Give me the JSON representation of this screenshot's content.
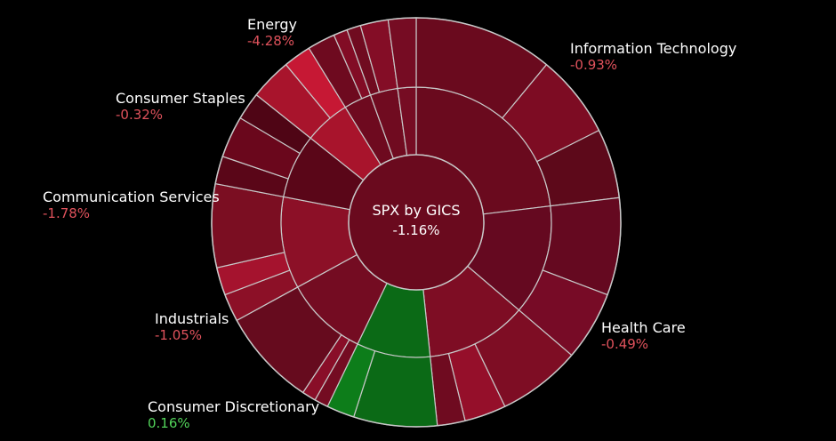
{
  "chart_data": {
    "type": "sunburst",
    "title": "SPX by GICS",
    "total_change": "-1.16%",
    "colors": {
      "strong_negative": "#a8142c",
      "negative": "#8a0f25",
      "mild_negative": "#6e0a1f",
      "flat_negative": "#5c0619",
      "positive": "#0b6a16",
      "label_negative": "#e0525c",
      "label_positive": "#52d35a"
    },
    "sectors": [
      {
        "name": "Information Technology",
        "change_label": "-0.93%",
        "change": -0.93,
        "weight": 21,
        "sub": [
          10,
          6,
          5
        ],
        "color": "#6a0a1e",
        "label_side": "right"
      },
      {
        "name": "Health Care",
        "change_label": "-0.49%",
        "change": -0.49,
        "weight": 12,
        "sub": [
          7,
          5
        ],
        "color": "#650920",
        "label_side": "right"
      },
      {
        "name": "",
        "change_label": "",
        "change": -1.1,
        "weight": 11,
        "sub": [
          6,
          3,
          2
        ],
        "color": "#7e0d24",
        "label_side": "none"
      },
      {
        "name": "Consumer Discretionary",
        "change_label": "0.16%",
        "change": 0.16,
        "weight": 8,
        "sub": [
          6,
          2
        ],
        "color": "#0b6a16",
        "label_side": "left"
      },
      {
        "name": "Industrials",
        "change_label": "-1.05%",
        "change": -1.05,
        "weight": 9,
        "sub": [
          1,
          1,
          7
        ],
        "color": "#740c22",
        "label_side": "left"
      },
      {
        "name": "Communication Services",
        "change_label": "-1.78%",
        "change": -1.78,
        "weight": 10,
        "sub": [
          2,
          2,
          6
        ],
        "color": "#8c1027",
        "label_side": "left"
      },
      {
        "name": "Consumer Staples",
        "change_label": "-0.32%",
        "change": -0.32,
        "weight": 7,
        "sub": [
          2,
          3,
          2
        ],
        "color": "#5a0618",
        "label_side": "left"
      },
      {
        "name": "Energy",
        "change_label": "-4.28%",
        "change": -4.28,
        "weight": 5,
        "sub": [
          3,
          2
        ],
        "color": "#a8142c",
        "label_side": "left"
      },
      {
        "name": "",
        "change_label": "",
        "change": -0.8,
        "weight": 3,
        "sub": [
          2,
          1
        ],
        "color": "#6e0a1f",
        "label_side": "none"
      },
      {
        "name": "",
        "change_label": "",
        "change": -0.9,
        "weight": 3,
        "sub": [
          1,
          2
        ],
        "color": "#700b20",
        "label_side": "none"
      },
      {
        "name": "",
        "change_label": "",
        "change": -0.7,
        "weight": 2,
        "sub": [
          2
        ],
        "color": "#760c23",
        "label_side": "none"
      }
    ]
  }
}
